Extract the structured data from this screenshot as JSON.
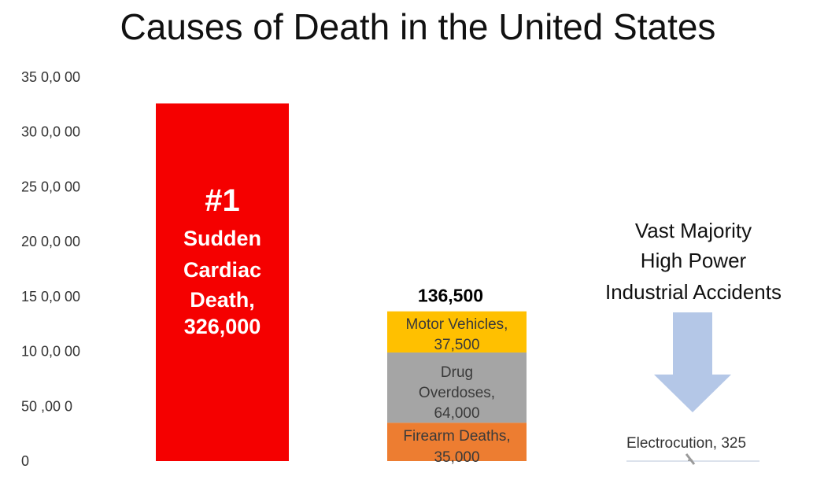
{
  "chart_data": {
    "type": "bar",
    "title": "Causes of Death in the United States",
    "xlabel": "",
    "ylabel": "",
    "ylim": [
      0,
      350000
    ],
    "yticks": [
      {
        "value": 0,
        "label": "0"
      },
      {
        "value": 50000,
        "label": "50 ,00 0"
      },
      {
        "value": 100000,
        "label": "10 0,0 00"
      },
      {
        "value": 150000,
        "label": "15 0,0 00"
      },
      {
        "value": 200000,
        "label": "20 0,0 00"
      },
      {
        "value": 250000,
        "label": "25 0,0 00"
      },
      {
        "value": 300000,
        "label": "30 0,0 00"
      },
      {
        "value": 350000,
        "label": "35 0,0 00"
      }
    ],
    "grid": false,
    "legend": "none",
    "bars": [
      {
        "category": "Sudden Cardiac Death",
        "value": 326000,
        "color": "#f50000",
        "label_lines": [
          "#1",
          "Sudden",
          "Cardiac",
          "Death,",
          "326,000"
        ]
      },
      {
        "category": "Stacked",
        "total_label": "136,500",
        "segments": [
          {
            "name": "Firearm Deaths",
            "value": 35000,
            "color": "#ed7d31",
            "label_lines": [
              "Firearm Deaths,",
              "35,000"
            ]
          },
          {
            "name": "Drug Overdoses",
            "value": 64000,
            "color": "#a5a5a5",
            "label_lines": [
              "Drug",
              "Overdoses,",
              "64,000"
            ]
          },
          {
            "name": "Motor Vehicles",
            "value": 37500,
            "color": "#ffc000",
            "label_lines": [
              "Motor Vehicles,",
              "37,500"
            ]
          }
        ]
      },
      {
        "category": "Electrocution",
        "value": 325,
        "color": "#a5a5a5",
        "label": "Electrocution, 325"
      }
    ],
    "annotations": [
      {
        "text_lines": [
          "Vast Majority",
          "High Power",
          "Industrial Accidents"
        ],
        "arrow_color": "#b4c7e7"
      }
    ]
  }
}
